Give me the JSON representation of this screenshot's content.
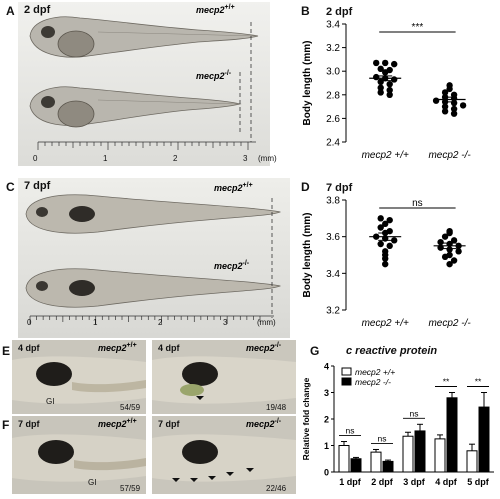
{
  "panels": {
    "A": {
      "label": "A",
      "stage": "2 dpf",
      "wt": "mecp2",
      "wt_sup": "+/+",
      "ko": "mecp2",
      "ko_sup": "-/-",
      "ruler_ticks": [
        "0",
        "1",
        "2",
        "3"
      ],
      "unit": "(mm)"
    },
    "B": {
      "label": "B",
      "title": "2 dpf"
    },
    "C": {
      "label": "C",
      "stage": "7 dpf",
      "wt": "mecp2",
      "wt_sup": "+/+",
      "ko": "mecp2",
      "ko_sup": "-/-",
      "ruler_ticks": [
        "0",
        "1",
        "2",
        "3"
      ],
      "unit": "(mm)"
    },
    "D": {
      "label": "D",
      "title": "7 dpf"
    },
    "E": {
      "label": "E",
      "left_stage": "4 dpf",
      "left_geno": "mecp2",
      "left_sup": "+/+",
      "left_note": "GI",
      "left_count": "54/59",
      "right_stage": "4 dpf",
      "right_geno": "mecp2",
      "right_sup": "-/-",
      "right_count": "19/48"
    },
    "F": {
      "label": "F",
      "left_stage": "7 dpf",
      "left_geno": "mecp2",
      "left_sup": "+/+",
      "left_note": "GI",
      "left_count": "57/59",
      "right_stage": "7 dpf",
      "right_geno": "mecp2",
      "right_sup": "-/-",
      "right_count": "22/46"
    },
    "G": {
      "label": "G",
      "title": "c reactive protein"
    }
  },
  "chart_data": [
    {
      "type": "scatter",
      "panel": "B",
      "title": "2 dpf",
      "ylabel": "Body length (mm)",
      "ylim": [
        2.4,
        3.4
      ],
      "yticks": [
        "2.4",
        "2.6",
        "2.8",
        "3.0",
        "3.2",
        "3.4"
      ],
      "categories": [
        "mecp2 +/+",
        "mecp2 -/-"
      ],
      "series": [
        {
          "name": "mecp2 +/+",
          "values": [
            3.07,
            3.07,
            3.06,
            3.02,
            3.01,
            2.99,
            2.95,
            2.94,
            2.93,
            2.91,
            2.89,
            2.86,
            2.84,
            2.82,
            2.8
          ],
          "mean": 2.94,
          "sem": 0.02
        },
        {
          "name": "mecp2 -/-",
          "values": [
            2.88,
            2.85,
            2.82,
            2.8,
            2.78,
            2.77,
            2.75,
            2.74,
            2.73,
            2.71,
            2.7,
            2.68,
            2.66,
            2.64
          ],
          "mean": 2.76,
          "sem": 0.02
        }
      ],
      "significance": "***"
    },
    {
      "type": "scatter",
      "panel": "D",
      "title": "7 dpf",
      "ylabel": "Body length (mm)",
      "ylim": [
        3.2,
        3.8
      ],
      "yticks": [
        "3.2",
        "3.4",
        "3.6",
        "3.8"
      ],
      "categories": [
        "mecp2 +/+",
        "mecp2 -/-"
      ],
      "series": [
        {
          "name": "mecp2 +/+",
          "values": [
            3.7,
            3.69,
            3.67,
            3.65,
            3.63,
            3.62,
            3.6,
            3.59,
            3.58,
            3.56,
            3.55,
            3.52,
            3.5,
            3.48,
            3.45
          ],
          "mean": 3.6,
          "sem": 0.02
        },
        {
          "name": "mecp2 -/-",
          "values": [
            3.63,
            3.62,
            3.6,
            3.58,
            3.57,
            3.56,
            3.55,
            3.54,
            3.53,
            3.52,
            3.5,
            3.49,
            3.47,
            3.45
          ],
          "mean": 3.55,
          "sem": 0.015
        }
      ],
      "significance": "ns"
    },
    {
      "type": "bar",
      "panel": "G",
      "title": "c reactive protein",
      "ylabel": "Relative fold change",
      "ylim": [
        0,
        4
      ],
      "yticks": [
        "0",
        "1",
        "2",
        "3",
        "4"
      ],
      "categories": [
        "1 dpf",
        "2 dpf",
        "3 dpf",
        "4 dpf",
        "5 dpf"
      ],
      "series": [
        {
          "name": "mecp2 +/+",
          "color": "#ffffff",
          "values": [
            1.0,
            0.75,
            1.35,
            1.25,
            0.8
          ],
          "errors": [
            0.15,
            0.1,
            0.15,
            0.15,
            0.25
          ]
        },
        {
          "name": "mecp2 -/-",
          "color": "#000000",
          "values": [
            0.5,
            0.4,
            1.55,
            2.8,
            2.45
          ],
          "errors": [
            0.05,
            0.05,
            0.25,
            0.2,
            0.55
          ]
        }
      ],
      "significance": [
        "ns",
        "ns",
        "ns",
        "**",
        "**"
      ]
    }
  ]
}
